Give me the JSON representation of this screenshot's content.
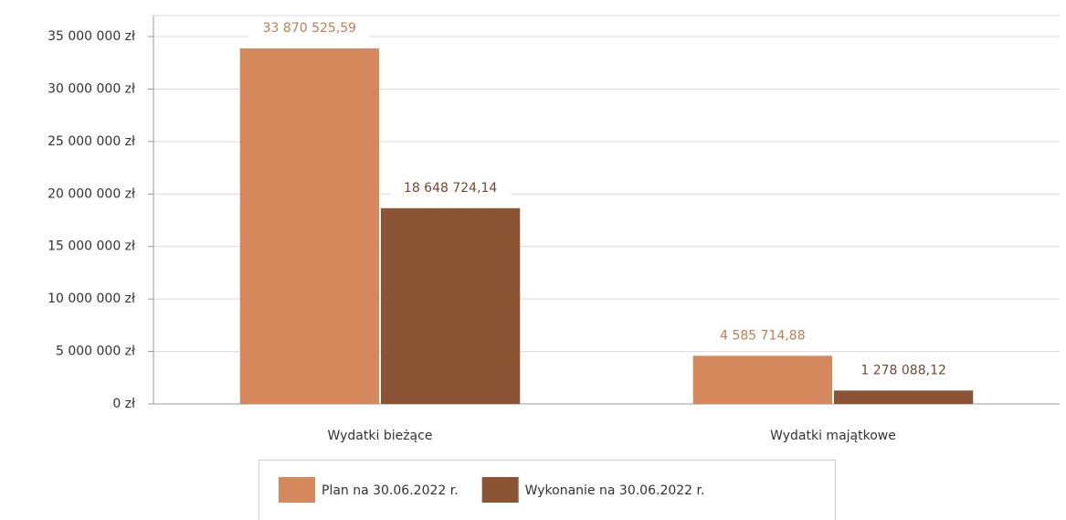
{
  "chart_data": {
    "type": "bar",
    "categories": [
      "Wydatki bieżące",
      "Wydatki majątkowe"
    ],
    "series": [
      {
        "name": "Plan na 30.06.2022 r.",
        "color": "#d4885b",
        "values": [
          33870525.59,
          4585714.88
        ],
        "value_labels": [
          "33 870 525,59",
          "4 585 714,88"
        ]
      },
      {
        "name": "Wykonanie na 30.06.2022 r.",
        "color": "#8a5435",
        "values": [
          18648724.14,
          1278088.12
        ],
        "value_labels": [
          "18 648 724,14",
          "1 278 088,12"
        ]
      }
    ],
    "ylim": [
      0,
      37000000
    ],
    "yticks": [
      {
        "value": 0,
        "label": "0 zł"
      },
      {
        "value": 5000000,
        "label": "5 000 000 zł"
      },
      {
        "value": 10000000,
        "label": "10 000 000 zł"
      },
      {
        "value": 15000000,
        "label": "15 000 000 zł"
      },
      {
        "value": 20000000,
        "label": "20 000 000 zł"
      },
      {
        "value": 25000000,
        "label": "25 000 000 zł"
      },
      {
        "value": 30000000,
        "label": "30 000 000 zł"
      },
      {
        "value": 35000000,
        "label": "35 000 000 zł"
      }
    ],
    "grid": true,
    "legend": "bottom"
  }
}
